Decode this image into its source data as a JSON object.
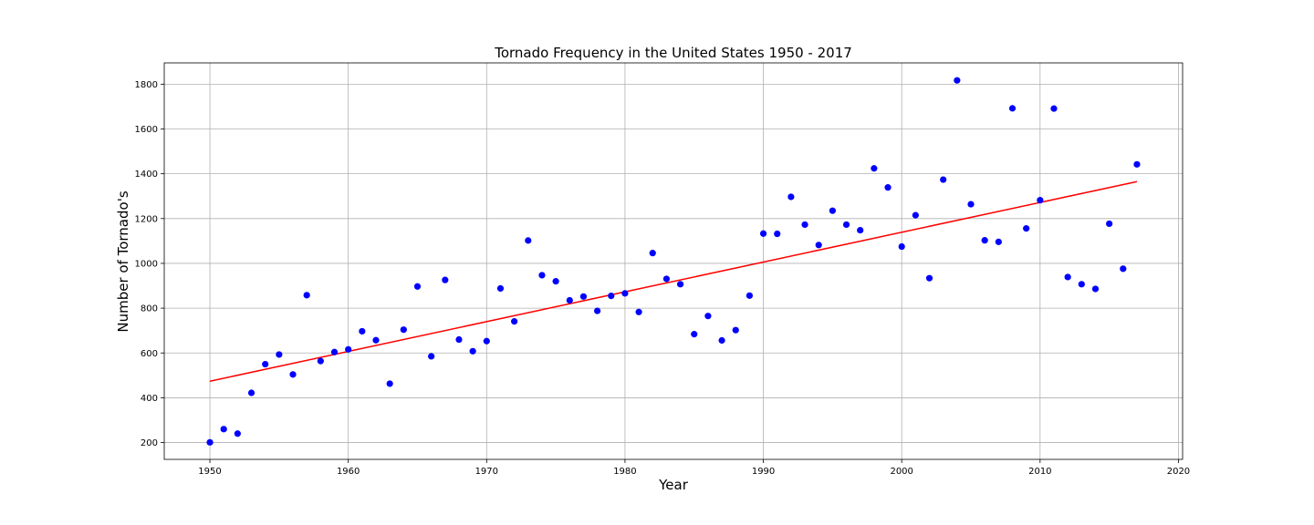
{
  "chart_data": {
    "type": "scatter",
    "title": "Tornado Frequency in the United States 1950 - 2017",
    "xlabel": "Year",
    "ylabel": "Number of Tornado's",
    "xlim": [
      1946.7,
      2020.3
    ],
    "ylim": [
      125,
      1895
    ],
    "xticks": [
      1950,
      1960,
      1970,
      1980,
      1990,
      2000,
      2010,
      2020
    ],
    "yticks": [
      200,
      400,
      600,
      800,
      1000,
      1200,
      1400,
      1600,
      1800
    ],
    "grid": true,
    "series": [
      {
        "marker_color": "#0000ff",
        "x": [
          1950,
          1951,
          1952,
          1953,
          1954,
          1955,
          1956,
          1957,
          1958,
          1959,
          1960,
          1961,
          1962,
          1963,
          1964,
          1965,
          1966,
          1967,
          1968,
          1969,
          1970,
          1971,
          1972,
          1973,
          1974,
          1975,
          1976,
          1977,
          1978,
          1979,
          1980,
          1981,
          1982,
          1983,
          1984,
          1985,
          1986,
          1987,
          1988,
          1989,
          1990,
          1991,
          1992,
          1993,
          1994,
          1995,
          1996,
          1997,
          1998,
          1999,
          2000,
          2001,
          2002,
          2003,
          2004,
          2005,
          2006,
          2007,
          2008,
          2009,
          2010,
          2011,
          2012,
          2013,
          2014,
          2015,
          2016,
          2017
        ],
        "y": [
          201,
          260,
          240,
          422,
          550,
          593,
          504,
          858,
          564,
          604,
          616,
          697,
          657,
          463,
          704,
          897,
          585,
          926,
          660,
          608,
          653,
          888,
          741,
          1102,
          947,
          920,
          835,
          852,
          788,
          855,
          866,
          783,
          1046,
          931,
          907,
          684,
          765,
          656,
          702,
          856,
          1133,
          1132,
          1297,
          1173,
          1082,
          1235,
          1173,
          1148,
          1424,
          1339,
          1075,
          1215,
          934,
          1374,
          1817,
          1264,
          1103,
          1096,
          1692,
          1156,
          1282,
          1691,
          939,
          907,
          886,
          1177,
          976,
          1442
        ]
      }
    ],
    "trendline": {
      "color": "#ff0000",
      "x": [
        1950,
        2017
      ],
      "y": [
        474,
        1365
      ]
    }
  }
}
